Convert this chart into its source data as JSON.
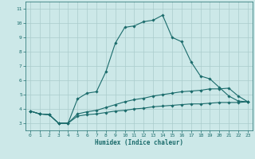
{
  "xlabel": "Humidex (Indice chaleur)",
  "bg_color": "#cce8e8",
  "line_color": "#1a6b6b",
  "grid_color": "#aacccc",
  "x_ticks": [
    0,
    1,
    2,
    3,
    4,
    5,
    6,
    7,
    8,
    9,
    10,
    11,
    12,
    13,
    14,
    15,
    16,
    17,
    18,
    19,
    20,
    21,
    22,
    23
  ],
  "y_ticks": [
    3,
    4,
    5,
    6,
    7,
    8,
    9,
    10,
    11
  ],
  "xlim": [
    -0.5,
    23.5
  ],
  "ylim": [
    2.5,
    11.5
  ],
  "line1": {
    "x": [
      0,
      1,
      2,
      3,
      4,
      5,
      6,
      7,
      8,
      9,
      10,
      11,
      12,
      13,
      14,
      15,
      16,
      17,
      18,
      19,
      20,
      21,
      22,
      23
    ],
    "y": [
      3.85,
      3.65,
      3.6,
      3.0,
      3.0,
      4.7,
      5.1,
      5.2,
      6.6,
      8.6,
      9.7,
      9.8,
      10.1,
      10.2,
      10.55,
      9.0,
      8.7,
      7.3,
      6.3,
      6.1,
      5.5,
      4.9,
      4.55,
      4.5
    ]
  },
  "line2": {
    "x": [
      0,
      1,
      2,
      3,
      4,
      5,
      6,
      7,
      8,
      9,
      10,
      11,
      12,
      13,
      14,
      15,
      16,
      17,
      18,
      19,
      20,
      21,
      22,
      23
    ],
    "y": [
      3.85,
      3.65,
      3.6,
      3.0,
      3.0,
      3.65,
      3.8,
      3.9,
      4.1,
      4.3,
      4.5,
      4.65,
      4.75,
      4.9,
      5.0,
      5.1,
      5.2,
      5.25,
      5.3,
      5.4,
      5.4,
      5.45,
      4.9,
      4.5
    ]
  },
  "line3": {
    "x": [
      0,
      1,
      2,
      3,
      4,
      5,
      6,
      7,
      8,
      9,
      10,
      11,
      12,
      13,
      14,
      15,
      16,
      17,
      18,
      19,
      20,
      21,
      22,
      23
    ],
    "y": [
      3.85,
      3.65,
      3.6,
      3.0,
      3.0,
      3.5,
      3.6,
      3.65,
      3.75,
      3.85,
      3.9,
      4.0,
      4.05,
      4.15,
      4.2,
      4.25,
      4.3,
      4.35,
      4.35,
      4.4,
      4.45,
      4.45,
      4.45,
      4.5
    ]
  }
}
